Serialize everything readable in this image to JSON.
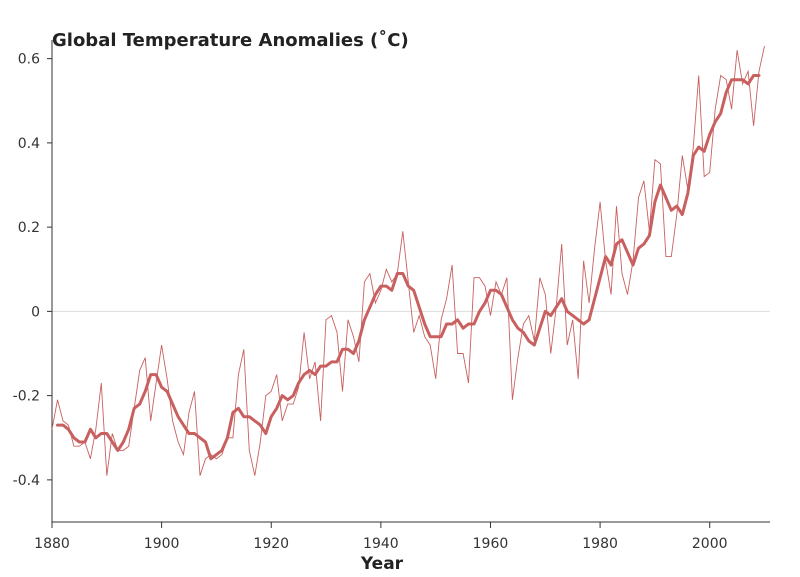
{
  "chart_data": {
    "type": "line",
    "title": "Global Temperature Anomalies (˚C)",
    "xlabel": "Year",
    "ylabel": "",
    "xlim": [
      1880,
      2011
    ],
    "ylim": [
      -0.5,
      0.63
    ],
    "xticks": [
      1880,
      1900,
      1920,
      1940,
      1960,
      1980,
      2000
    ],
    "yticks": [
      -0.4,
      -0.2,
      0,
      0.2,
      0.4,
      0.6
    ],
    "ytick_labels": [
      "-0.4",
      "-0.2",
      "0",
      "0.2",
      "0.4",
      "0.6"
    ],
    "reference_line_y": 0,
    "grid": false,
    "colors": {
      "line": "#c96060",
      "zero": "#dddddd"
    },
    "series": [
      {
        "kind": "annual",
        "x_start": 1880,
        "values": [
          -0.28,
          -0.21,
          -0.26,
          -0.27,
          -0.32,
          -0.32,
          -0.31,
          -0.35,
          -0.28,
          -0.17,
          -0.39,
          -0.29,
          -0.33,
          -0.33,
          -0.32,
          -0.23,
          -0.14,
          -0.11,
          -0.26,
          -0.17,
          -0.08,
          -0.16,
          -0.26,
          -0.31,
          -0.34,
          -0.24,
          -0.19,
          -0.39,
          -0.35,
          -0.34,
          -0.35,
          -0.34,
          -0.3,
          -0.3,
          -0.15,
          -0.09,
          -0.33,
          -0.39,
          -0.31,
          -0.2,
          -0.19,
          -0.15,
          -0.26,
          -0.22,
          -0.22,
          -0.18,
          -0.05,
          -0.16,
          -0.12,
          -0.26,
          -0.02,
          -0.01,
          -0.05,
          -0.19,
          -0.02,
          -0.06,
          -0.12,
          0.07,
          0.09,
          0.02,
          0.05,
          0.1,
          0.07,
          0.09,
          0.19,
          0.07,
          -0.05,
          -0.01,
          -0.06,
          -0.08,
          -0.16,
          -0.02,
          0.03,
          0.11,
          -0.1,
          -0.1,
          -0.17,
          0.08,
          0.08,
          0.06,
          -0.01,
          0.07,
          0.04,
          0.08,
          -0.21,
          -0.11,
          -0.03,
          -0.01,
          -0.07,
          0.08,
          0.04,
          -0.1,
          0.01,
          0.16,
          -0.08,
          -0.02,
          -0.16,
          0.12,
          0.02,
          0.15,
          0.26,
          0.12,
          0.04,
          0.25,
          0.09,
          0.04,
          0.12,
          0.27,
          0.31,
          0.19,
          0.36,
          0.35,
          0.13,
          0.13,
          0.23,
          0.37,
          0.29,
          0.39,
          0.56,
          0.32,
          0.33,
          0.48,
          0.56,
          0.55,
          0.48,
          0.62,
          0.54,
          0.57,
          0.44,
          0.57,
          0.63
        ]
      },
      {
        "kind": "five_year_mean",
        "x_start": 1881,
        "values": [
          -0.27,
          -0.27,
          -0.28,
          -0.3,
          -0.31,
          -0.31,
          -0.28,
          -0.3,
          -0.29,
          -0.29,
          -0.31,
          -0.33,
          -0.31,
          -0.28,
          -0.23,
          -0.22,
          -0.19,
          -0.15,
          -0.15,
          -0.18,
          -0.19,
          -0.22,
          -0.25,
          -0.27,
          -0.29,
          -0.29,
          -0.3,
          -0.31,
          -0.35,
          -0.34,
          -0.33,
          -0.3,
          -0.24,
          -0.23,
          -0.25,
          -0.25,
          -0.26,
          -0.27,
          -0.29,
          -0.25,
          -0.23,
          -0.2,
          -0.21,
          -0.2,
          -0.17,
          -0.15,
          -0.14,
          -0.15,
          -0.13,
          -0.13,
          -0.12,
          -0.12,
          -0.09,
          -0.09,
          -0.1,
          -0.07,
          -0.02,
          0.01,
          0.04,
          0.06,
          0.06,
          0.05,
          0.09,
          0.09,
          0.06,
          0.05,
          0.01,
          -0.03,
          -0.06,
          -0.06,
          -0.06,
          -0.03,
          -0.03,
          -0.02,
          -0.04,
          -0.03,
          -0.03,
          0.0,
          0.02,
          0.05,
          0.05,
          0.04,
          0.01,
          -0.02,
          -0.04,
          -0.05,
          -0.07,
          -0.08,
          -0.04,
          0.0,
          -0.01,
          0.01,
          0.03,
          0.0,
          -0.01,
          -0.02,
          -0.03,
          -0.02,
          0.03,
          0.08,
          0.13,
          0.11,
          0.16,
          0.17,
          0.14,
          0.11,
          0.15,
          0.16,
          0.18,
          0.26,
          0.3,
          0.27,
          0.24,
          0.25,
          0.23,
          0.28,
          0.37,
          0.39,
          0.38,
          0.42,
          0.45,
          0.47,
          0.52,
          0.55,
          0.55,
          0.55,
          0.54,
          0.56,
          0.56
        ]
      }
    ]
  }
}
